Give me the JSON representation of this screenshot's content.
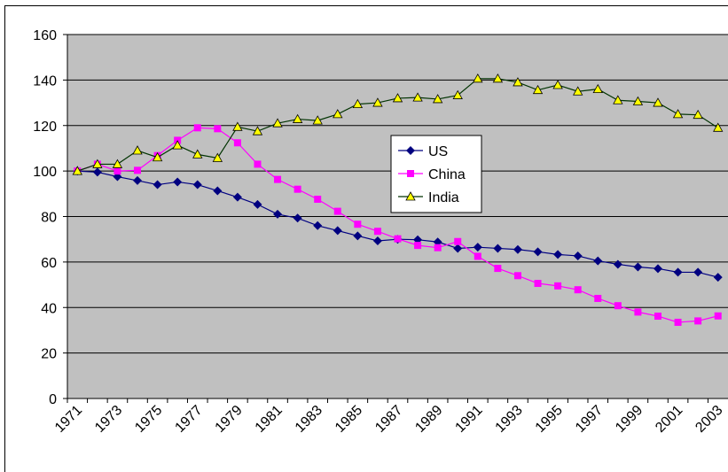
{
  "chart_data": {
    "type": "line",
    "categories": [
      "1971",
      null,
      "1973",
      null,
      "1975",
      null,
      "1977",
      null,
      "1979",
      null,
      "1981",
      null,
      "1983",
      null,
      "1985",
      null,
      "1987",
      null,
      "1989",
      null,
      "1991",
      null,
      "1993",
      null,
      "1995",
      null,
      "1997",
      null,
      "1999",
      null,
      "2001",
      null,
      "2003"
    ],
    "series": [
      {
        "name": "US",
        "color": "#000080",
        "marker": "diamond",
        "values": [
          100,
          99.5,
          97.5,
          95.8,
          94,
          95.2,
          94,
          91.3,
          88.5,
          85.3,
          81,
          79.3,
          76,
          73.8,
          71.5,
          69.3,
          70,
          69.8,
          68.8,
          66,
          66.5,
          66,
          65.5,
          64.5,
          63.3,
          62.7,
          60.5,
          59,
          57.8,
          57.1,
          55.5,
          55.5,
          53.3
        ]
      },
      {
        "name": "China",
        "color": "#ff00ff",
        "marker": "square",
        "values": [
          100,
          103,
          100,
          100.3,
          106.8,
          113.5,
          119,
          118.6,
          112.4,
          103,
          96.3,
          92,
          87.6,
          82.3,
          76.6,
          73.5,
          70.2,
          67.3,
          66.3,
          69,
          62.5,
          57.2,
          54,
          50.6,
          49.5,
          47.8,
          44,
          40.8,
          38,
          36.2,
          33.5,
          34.1,
          36.3
        ]
      },
      {
        "name": "India",
        "color": "#003300",
        "marker_color": "#ffff00",
        "marker": "triangle",
        "values": [
          100,
          103,
          103,
          109,
          106,
          111.3,
          107.3,
          105.7,
          119.4,
          117.5,
          121,
          122.8,
          122.2,
          125,
          129.4,
          130,
          132,
          132.3,
          131.6,
          133.3,
          140.6,
          140.6,
          139,
          135.6,
          137.8,
          135,
          136,
          131.1,
          130.6,
          130,
          125,
          124.7,
          119
        ]
      }
    ],
    "ylim": [
      0,
      160
    ],
    "yticks": [
      0,
      20,
      40,
      60,
      80,
      100,
      120,
      140,
      160
    ],
    "grid": true,
    "plot_background": "#c0c0c0"
  }
}
